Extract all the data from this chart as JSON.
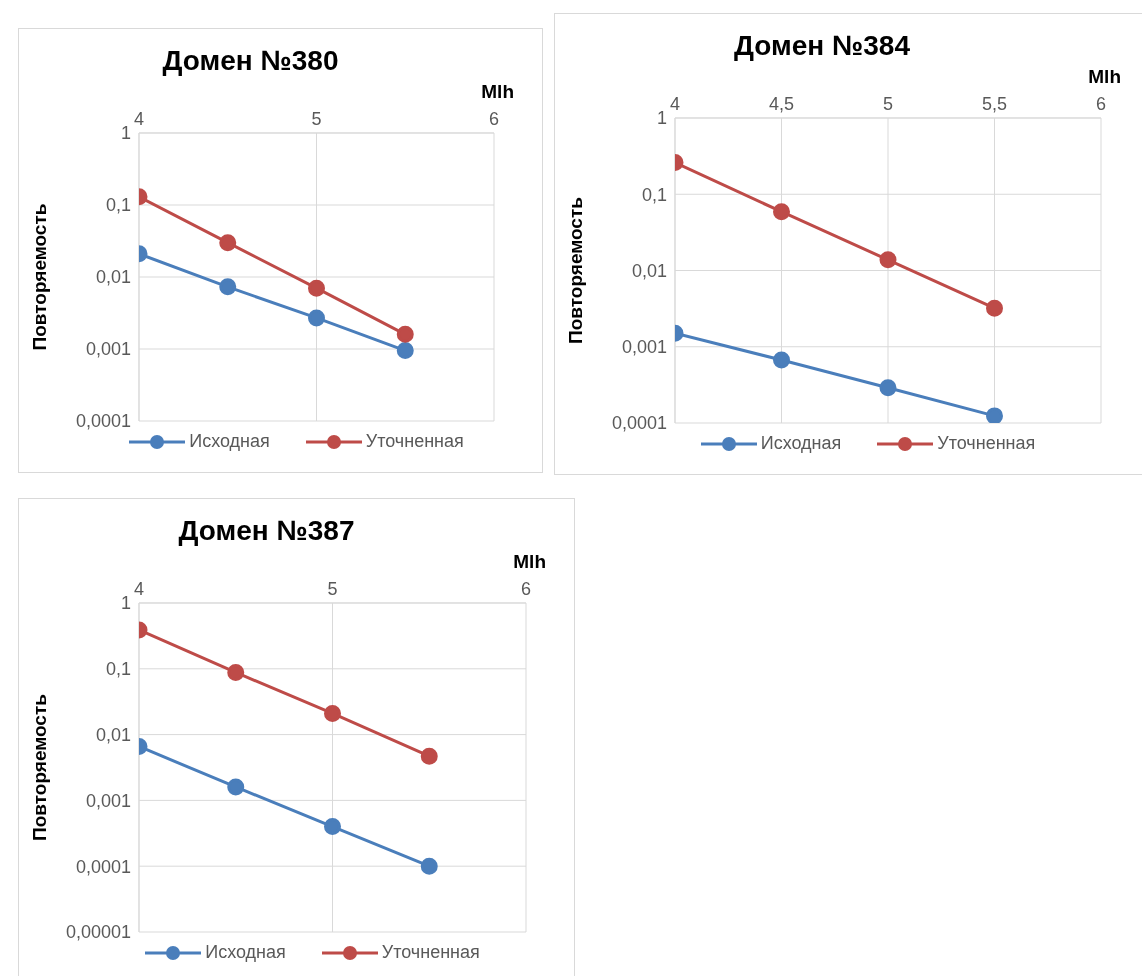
{
  "chart_data": [
    {
      "type": "line",
      "title": "Домен №380",
      "xlabel": "Mlh",
      "ylabel": "Повторяемость",
      "x": [
        4,
        4.5,
        5,
        5.5
      ],
      "xlim": [
        4,
        6
      ],
      "xticks": [
        4,
        5,
        6
      ],
      "ylim": [
        0.0001,
        1
      ],
      "log": "y",
      "yticks": [
        {
          "value": 1,
          "label": "1"
        },
        {
          "value": 0.1,
          "label": "0,1"
        },
        {
          "value": 0.01,
          "label": "0,01"
        },
        {
          "value": 0.001,
          "label": "0,001"
        },
        {
          "value": 0.0001,
          "label": "0,0001"
        }
      ],
      "grid": true,
      "legend": "bottom",
      "marker": "circle",
      "line_style": "solid",
      "series": [
        {
          "name": "Исходная",
          "color": "#4a7ebb",
          "values": [
            0.021,
            0.0073,
            0.0027,
            0.00095
          ]
        },
        {
          "name": "Уточненная",
          "color": "#be4b48",
          "values": [
            0.13,
            0.03,
            0.007,
            0.0016
          ]
        }
      ]
    },
    {
      "type": "line",
      "title": "Домен №384",
      "xlabel": "Mlh",
      "ylabel": "Повторяемость",
      "x": [
        4,
        4.5,
        5,
        5.5
      ],
      "xlim": [
        4,
        6
      ],
      "xticks": [
        4,
        {
          "value": 4.5,
          "label": "4,5"
        },
        5,
        {
          "value": 5.5,
          "label": "5,5"
        },
        6
      ],
      "ylim": [
        0.0001,
        1
      ],
      "log": "y",
      "yticks": [
        {
          "value": 1,
          "label": "1"
        },
        {
          "value": 0.1,
          "label": "0,1"
        },
        {
          "value": 0.01,
          "label": "0,01"
        },
        {
          "value": 0.001,
          "label": "0,001"
        },
        {
          "value": 0.0001,
          "label": "0,0001"
        }
      ],
      "grid": true,
      "legend": "bottom",
      "marker": "circle",
      "line_style": "solid",
      "series": [
        {
          "name": "Исходная",
          "color": "#4a7ebb",
          "values": [
            0.0015,
            0.00067,
            0.00029,
            0.000124
          ]
        },
        {
          "name": "Уточненная",
          "color": "#be4b48",
          "values": [
            0.26,
            0.059,
            0.0138,
            0.0032
          ]
        }
      ]
    },
    {
      "type": "line",
      "title": "Домен №387",
      "xlabel": "Mlh",
      "ylabel": "Повторяемость",
      "x": [
        4,
        4.5,
        5,
        5.5
      ],
      "xlim": [
        4,
        6
      ],
      "xticks": [
        4,
        5,
        6
      ],
      "ylim": [
        1e-05,
        1
      ],
      "log": "y",
      "yticks": [
        {
          "value": 1,
          "label": "1"
        },
        {
          "value": 0.1,
          "label": "0,1"
        },
        {
          "value": 0.01,
          "label": "0,01"
        },
        {
          "value": 0.001,
          "label": "0,001"
        },
        {
          "value": 0.0001,
          "label": "0,0001"
        },
        {
          "value": 1e-05,
          "label": "0,00001"
        }
      ],
      "grid": true,
      "legend": "bottom",
      "marker": "circle",
      "line_style": "solid",
      "series": [
        {
          "name": "Исходная",
          "color": "#4a7ebb",
          "values": [
            0.0066,
            0.0016,
            0.0004,
            0.0001
          ]
        },
        {
          "name": "Уточненная",
          "color": "#be4b48",
          "values": [
            0.39,
            0.088,
            0.021,
            0.0047
          ]
        }
      ]
    }
  ]
}
